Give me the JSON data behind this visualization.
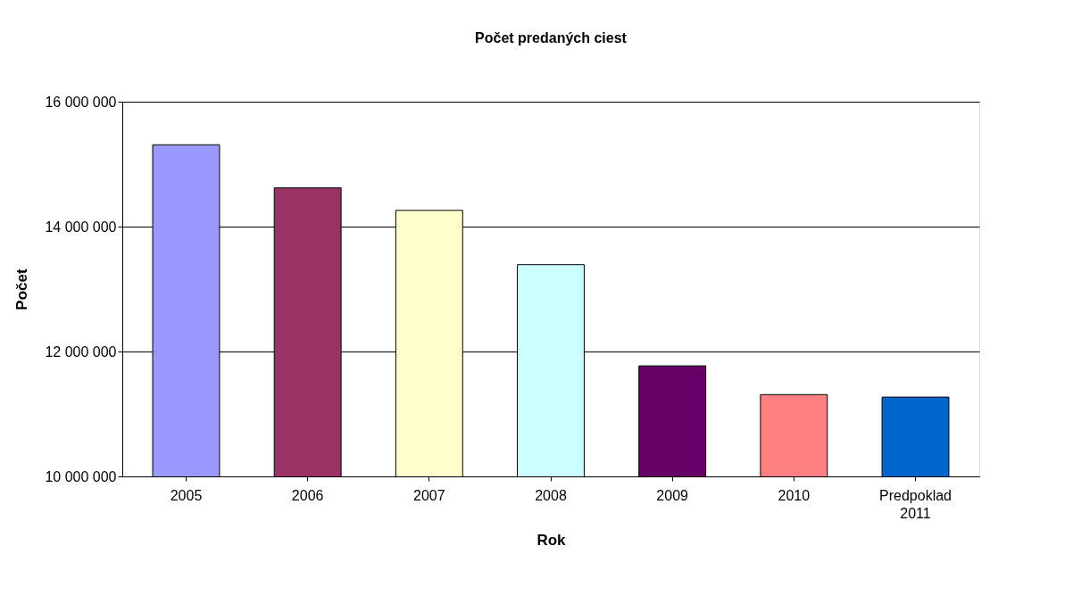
{
  "chart_data": {
    "type": "bar",
    "title": "Počet predaných ciest",
    "xlabel": "Rok",
    "ylabel": "Počet",
    "categories": [
      "2005",
      "2006",
      "2007",
      "2008",
      "2009",
      "2010",
      "Predpoklad 2011"
    ],
    "values": [
      15310000,
      14620000,
      14260000,
      13390000,
      11770000,
      11310000,
      11270000
    ],
    "colors": [
      "#9999ff",
      "#993366",
      "#ffffcc",
      "#ccffff",
      "#660066",
      "#ff8080",
      "#0066cc"
    ],
    "ylim": [
      10000000,
      16000000
    ],
    "yticks": [
      {
        "value": 10000000,
        "label": "10 000 000"
      },
      {
        "value": 12000000,
        "label": "12 000 000"
      },
      {
        "value": 14000000,
        "label": "14 000 000"
      },
      {
        "value": 16000000,
        "label": "16 000 000"
      }
    ],
    "grid": "y",
    "legend": false
  }
}
